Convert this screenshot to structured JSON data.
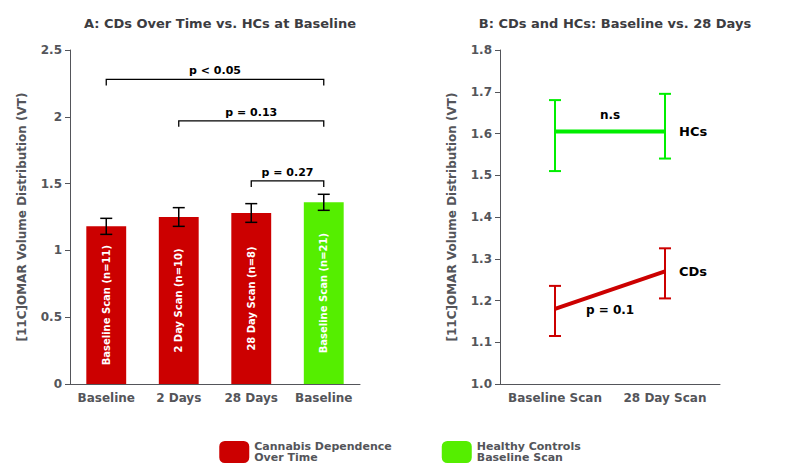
{
  "chart_data": [
    {
      "type": "bar",
      "title": "A: CDs Over Time vs. HCs at Baseline",
      "ylabel": "[11C]OMAR Volume Distribution (VT)",
      "categories": [
        "Baseline",
        "2 Days",
        "28 Days",
        "Baseline"
      ],
      "series": [
        {
          "name": "Cannabis Dependence\nOver Time",
          "color": "#cc0000",
          "values": [
            1.18,
            1.25,
            1.28,
            null
          ],
          "errors": [
            0.06,
            0.07,
            0.07,
            null
          ],
          "labels": [
            "Baseline Scan (n=11)",
            "2 Day Scan (n=10)",
            "28 Day Scan (n=8)",
            null
          ]
        },
        {
          "name": "Healthy Controls\nBaseline Scan",
          "color": "#55ee00",
          "values": [
            null,
            null,
            null,
            1.36
          ],
          "errors": [
            null,
            null,
            null,
            0.06
          ],
          "labels": [
            null,
            null,
            null,
            "Baseline Scan (n=21)"
          ]
        }
      ],
      "brackets": [
        {
          "from": 0,
          "to": 3,
          "y": 2.28,
          "label": "p < 0.05"
        },
        {
          "from": 1,
          "to": 3,
          "y": 1.97,
          "label": "p = 0.13"
        },
        {
          "from": 2,
          "to": 3,
          "y": 1.52,
          "label": "p = 0.27"
        }
      ],
      "ylim": [
        0,
        2.5
      ],
      "yticks": [
        0,
        0.5,
        1,
        1.5,
        2,
        2.5
      ],
      "grid": false,
      "legend": "bottom"
    },
    {
      "type": "line",
      "title": "B: CDs and HCs: Baseline vs. 28 Days",
      "ylabel": "[11C]OMAR Volume Distribution (VT)",
      "categories": [
        "Baseline Scan",
        "28 Day Scan"
      ],
      "series": [
        {
          "name": "HCs",
          "color": "#00ee00",
          "values": [
            1.605,
            1.605
          ],
          "errors_down": [
            0.095,
            0.065
          ],
          "errors_up": [
            0.075,
            0.09
          ],
          "annotation": "n.s"
        },
        {
          "name": "CDs",
          "color": "#cc0000",
          "values": [
            1.18,
            1.27
          ],
          "errors_down": [
            0.065,
            0.065
          ],
          "errors_up": [
            0.055,
            0.055
          ],
          "annotation": "p = 0.1"
        }
      ],
      "ylim": [
        1.0,
        1.8
      ],
      "yticks": [
        {
          "value": 1.0,
          "label": "1.0"
        },
        1.1,
        1.2,
        1.3,
        1.4,
        1.5,
        1.6,
        1.7,
        1.8
      ],
      "grid": false
    }
  ]
}
